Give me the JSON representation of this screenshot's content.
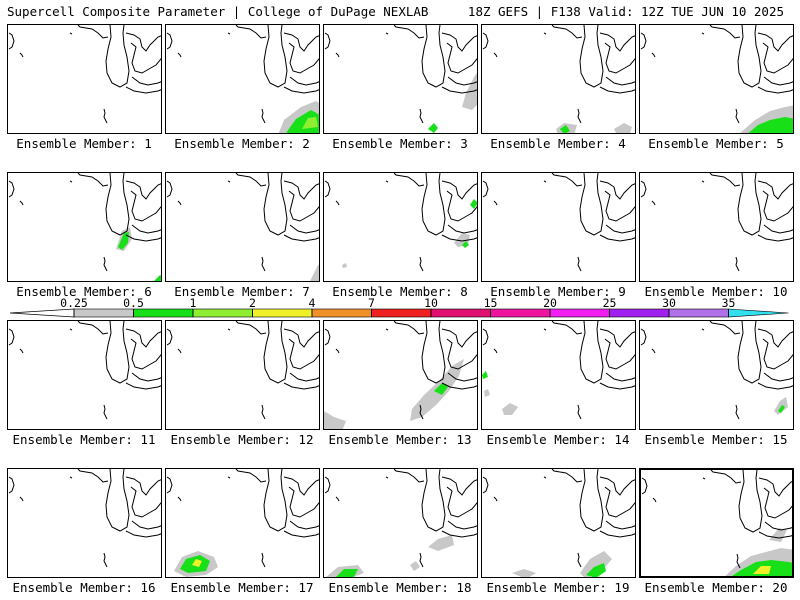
{
  "header": {
    "title": "Supercell Composite Parameter | College of DuPage NEXLAB",
    "run_info": "18Z GEFS | F138 Valid: 12Z TUE JUN 10 2025"
  },
  "map_layers": {
    "region": "Great Lakes",
    "field": "Supercell Composite Parameter",
    "highlighted_member": 20
  },
  "members": [
    {
      "label": "Ensemble Member: 1",
      "member": 1,
      "features": []
    },
    {
      "label": "Ensemble Member: 2",
      "member": 2,
      "features": [
        {
          "cls": "gray",
          "pts": [
            [
              112,
              110
            ],
            [
              118,
              95
            ],
            [
              135,
              82
            ],
            [
              150,
              76
            ],
            [
              156,
              80
            ],
            [
              156,
              110
            ]
          ]
        },
        {
          "cls": "green",
          "pts": [
            [
              120,
              108
            ],
            [
              130,
              94
            ],
            [
              145,
              85
            ],
            [
              154,
              90
            ],
            [
              155,
              108
            ]
          ]
        },
        {
          "cls": "lgreen",
          "pts": [
            [
              136,
              104
            ],
            [
              142,
              93
            ],
            [
              150,
              92
            ],
            [
              152,
              102
            ]
          ]
        }
      ]
    },
    {
      "label": "Ensemble Member: 3",
      "member": 3,
      "features": [
        {
          "cls": "gray",
          "pts": [
            [
              138,
              82
            ],
            [
              142,
              68
            ],
            [
              150,
              52
            ],
            [
              155,
              45
            ],
            [
              155,
              78
            ],
            [
              148,
              85
            ]
          ]
        },
        {
          "cls": "green",
          "pts": [
            [
              104,
              104
            ],
            [
              110,
              98
            ],
            [
              114,
              103
            ],
            [
              110,
              108
            ]
          ]
        }
      ]
    },
    {
      "label": "Ensemble Member: 4",
      "member": 4,
      "features": [
        {
          "cls": "gray",
          "pts": [
            [
              74,
              104
            ],
            [
              82,
              98
            ],
            [
              95,
              100
            ],
            [
              92,
              110
            ],
            [
              76,
              110
            ]
          ]
        },
        {
          "cls": "green",
          "pts": [
            [
              78,
              104
            ],
            [
              84,
              100
            ],
            [
              88,
              106
            ],
            [
              82,
              109
            ]
          ]
        },
        {
          "cls": "gray",
          "pts": [
            [
              132,
              104
            ],
            [
              142,
              98
            ],
            [
              150,
              102
            ],
            [
              148,
              108
            ],
            [
              134,
              108
            ]
          ]
        }
      ]
    },
    {
      "label": "Ensemble Member: 5",
      "member": 5,
      "features": [
        {
          "cls": "gray",
          "pts": [
            [
              100,
              108
            ],
            [
              115,
              95
            ],
            [
              130,
              86
            ],
            [
              145,
              82
            ],
            [
              156,
              80
            ],
            [
              156,
              110
            ]
          ]
        },
        {
          "cls": "green",
          "pts": [
            [
              106,
              110
            ],
            [
              118,
              100
            ],
            [
              130,
              95
            ],
            [
              145,
              92
            ],
            [
              156,
              94
            ],
            [
              156,
              110
            ]
          ]
        }
      ]
    },
    {
      "label": "Ensemble Member: 6",
      "member": 6,
      "features": [
        {
          "cls": "gray",
          "pts": [
            [
              108,
              76
            ],
            [
              114,
              58
            ],
            [
              122,
              54
            ],
            [
              124,
              66
            ],
            [
              116,
              78
            ]
          ]
        },
        {
          "cls": "green",
          "pts": [
            [
              110,
              74
            ],
            [
              116,
              60
            ],
            [
              121,
              59
            ],
            [
              120,
              70
            ],
            [
              114,
              77
            ]
          ]
        },
        {
          "cls": "green",
          "pts": [
            [
              146,
              108
            ],
            [
              152,
              102
            ],
            [
              155,
              104
            ],
            [
              155,
              110
            ]
          ]
        }
      ]
    },
    {
      "label": "Ensemble Member: 7",
      "member": 7,
      "features": [
        {
          "cls": "gray",
          "pts": [
            [
              144,
              108
            ],
            [
              152,
              92
            ],
            [
              156,
              90
            ],
            [
              156,
              110
            ]
          ]
        }
      ]
    },
    {
      "label": "Ensemble Member: 8",
      "member": 8,
      "features": [
        {
          "cls": "gray",
          "pts": [
            [
              130,
              70
            ],
            [
              138,
              60
            ],
            [
              146,
              62
            ],
            [
              144,
              72
            ],
            [
              134,
              74
            ]
          ]
        },
        {
          "cls": "green",
          "pts": [
            [
              138,
              72
            ],
            [
              142,
              68
            ],
            [
              145,
              72
            ],
            [
              141,
              75
            ]
          ]
        },
        {
          "cls": "green",
          "pts": [
            [
              146,
              32
            ],
            [
              150,
              26
            ],
            [
              154,
              30
            ],
            [
              150,
              36
            ]
          ]
        },
        {
          "cls": "gray",
          "pts": [
            [
              18,
              92
            ],
            [
              22,
              90
            ],
            [
              23,
              94
            ],
            [
              19,
              95
            ]
          ]
        }
      ]
    },
    {
      "label": "Ensemble Member: 9",
      "member": 9,
      "features": []
    },
    {
      "label": "Ensemble Member: 10",
      "member": 10,
      "features": []
    },
    {
      "label": "Ensemble Member: 11",
      "member": 11,
      "features": []
    },
    {
      "label": "Ensemble Member: 12",
      "member": 12,
      "features": []
    },
    {
      "label": "Ensemble Member: 13",
      "member": 13,
      "features": [
        {
          "cls": "gray",
          "pts": [
            [
              0,
              90
            ],
            [
              10,
              96
            ],
            [
              22,
              100
            ],
            [
              18,
              110
            ],
            [
              0,
              110
            ]
          ]
        },
        {
          "cls": "gray",
          "pts": [
            [
              88,
              88
            ],
            [
              100,
              74
            ],
            [
              115,
              60
            ],
            [
              128,
              45
            ],
            [
              140,
              38
            ],
            [
              135,
              55
            ],
            [
              125,
              70
            ],
            [
              112,
              84
            ],
            [
              98,
              96
            ],
            [
              86,
              100
            ]
          ]
        },
        {
          "cls": "green",
          "pts": [
            [
              110,
              70
            ],
            [
              118,
              62
            ],
            [
              124,
              66
            ],
            [
              118,
              74
            ]
          ]
        }
      ]
    },
    {
      "label": "Ensemble Member: 14",
      "member": 14,
      "features": [
        {
          "cls": "gray",
          "pts": [
            [
              20,
              88
            ],
            [
              28,
              82
            ],
            [
              36,
              86
            ],
            [
              30,
              94
            ],
            [
              22,
              94
            ]
          ]
        },
        {
          "cls": "green",
          "pts": [
            [
              0,
              54
            ],
            [
              4,
              50
            ],
            [
              6,
              56
            ],
            [
              1,
              58
            ]
          ]
        },
        {
          "cls": "gray",
          "pts": [
            [
              2,
              70
            ],
            [
              6,
              68
            ],
            [
              8,
              74
            ],
            [
              3,
              76
            ]
          ]
        }
      ]
    },
    {
      "label": "Ensemble Member: 15",
      "member": 15,
      "features": [
        {
          "cls": "gray",
          "pts": [
            [
              134,
              90
            ],
            [
              140,
              80
            ],
            [
              146,
              76
            ],
            [
              148,
              86
            ],
            [
              138,
              94
            ]
          ]
        },
        {
          "cls": "green",
          "pts": [
            [
              138,
              90
            ],
            [
              142,
              84
            ],
            [
              145,
              86
            ],
            [
              141,
              92
            ]
          ]
        }
      ]
    },
    {
      "label": "Ensemble Member: 16",
      "member": 16,
      "features": []
    },
    {
      "label": "Ensemble Member: 17",
      "member": 17,
      "features": [
        {
          "cls": "gray",
          "pts": [
            [
              8,
              102
            ],
            [
              16,
              88
            ],
            [
              32,
              82
            ],
            [
              48,
              88
            ],
            [
              52,
              98
            ],
            [
              40,
              106
            ],
            [
              20,
              108
            ]
          ]
        },
        {
          "cls": "green",
          "pts": [
            [
              14,
              100
            ],
            [
              20,
              90
            ],
            [
              34,
              86
            ],
            [
              44,
              92
            ],
            [
              40,
              102
            ],
            [
              22,
              104
            ]
          ]
        },
        {
          "cls": "yellow",
          "pts": [
            [
              26,
              96
            ],
            [
              30,
              90
            ],
            [
              36,
              92
            ],
            [
              33,
              98
            ]
          ]
        }
      ]
    },
    {
      "label": "Ensemble Member: 18",
      "member": 18,
      "features": [
        {
          "cls": "gray",
          "pts": [
            [
              104,
              78
            ],
            [
              114,
              70
            ],
            [
              128,
              66
            ],
            [
              130,
              76
            ],
            [
              114,
              82
            ]
          ]
        },
        {
          "cls": "gray",
          "pts": [
            [
              86,
              96
            ],
            [
              92,
              92
            ],
            [
              96,
              98
            ],
            [
              90,
              102
            ]
          ]
        },
        {
          "cls": "gray",
          "pts": [
            [
              2,
              108
            ],
            [
              14,
              98
            ],
            [
              34,
              96
            ],
            [
              40,
              104
            ],
            [
              24,
              110
            ],
            [
              2,
              110
            ]
          ]
        },
        {
          "cls": "green",
          "pts": [
            [
              12,
              108
            ],
            [
              20,
              100
            ],
            [
              34,
              100
            ],
            [
              30,
              108
            ]
          ]
        }
      ]
    },
    {
      "label": "Ensemble Member: 19",
      "member": 19,
      "features": [
        {
          "cls": "gray",
          "pts": [
            [
              98,
              104
            ],
            [
              108,
              90
            ],
            [
              122,
              82
            ],
            [
              130,
              90
            ],
            [
              118,
              104
            ],
            [
              104,
              110
            ]
          ]
        },
        {
          "cls": "green",
          "pts": [
            [
              104,
              106
            ],
            [
              112,
              98
            ],
            [
              122,
              94
            ],
            [
              124,
              102
            ],
            [
              114,
              109
            ]
          ]
        },
        {
          "cls": "gray",
          "pts": [
            [
              30,
              104
            ],
            [
              42,
              100
            ],
            [
              54,
              104
            ],
            [
              44,
              110
            ]
          ]
        }
      ]
    },
    {
      "label": "Ensemble Member: 20",
      "member": 20,
      "features": [
        {
          "cls": "gray",
          "pts": [
            [
              80,
              110
            ],
            [
              95,
              96
            ],
            [
              110,
              86
            ],
            [
              125,
              82
            ],
            [
              140,
              78
            ],
            [
              155,
              80
            ],
            [
              156,
              110
            ]
          ]
        },
        {
          "cls": "green",
          "pts": [
            [
              85,
              110
            ],
            [
              100,
              100
            ],
            [
              115,
              92
            ],
            [
              130,
              90
            ],
            [
              148,
              92
            ],
            [
              156,
              94
            ],
            [
              156,
              110
            ]
          ]
        },
        {
          "cls": "yellow",
          "pts": [
            [
              112,
              104
            ],
            [
              120,
              96
            ],
            [
              130,
              96
            ],
            [
              128,
              104
            ]
          ]
        },
        {
          "cls": "gray",
          "pts": [
            [
              128,
              70
            ],
            [
              138,
              58
            ],
            [
              146,
              60
            ],
            [
              140,
              72
            ]
          ]
        }
      ]
    }
  ],
  "colorbar": {
    "levels": [
      "0.25",
      "0.5",
      "1",
      "2",
      "4",
      "7",
      "10",
      "15",
      "20",
      "25",
      "30",
      "35"
    ],
    "colors": [
      "#c8c8c8",
      "#18e018",
      "#90ee32",
      "#f0f028",
      "#f09028",
      "#ee2020",
      "#e01070",
      "#ee14a0",
      "#f01ef0",
      "#a020f0",
      "#b070e8",
      "#30e0ee"
    ],
    "below_color": "#ffffff",
    "above_color": "#30e0ee"
  }
}
